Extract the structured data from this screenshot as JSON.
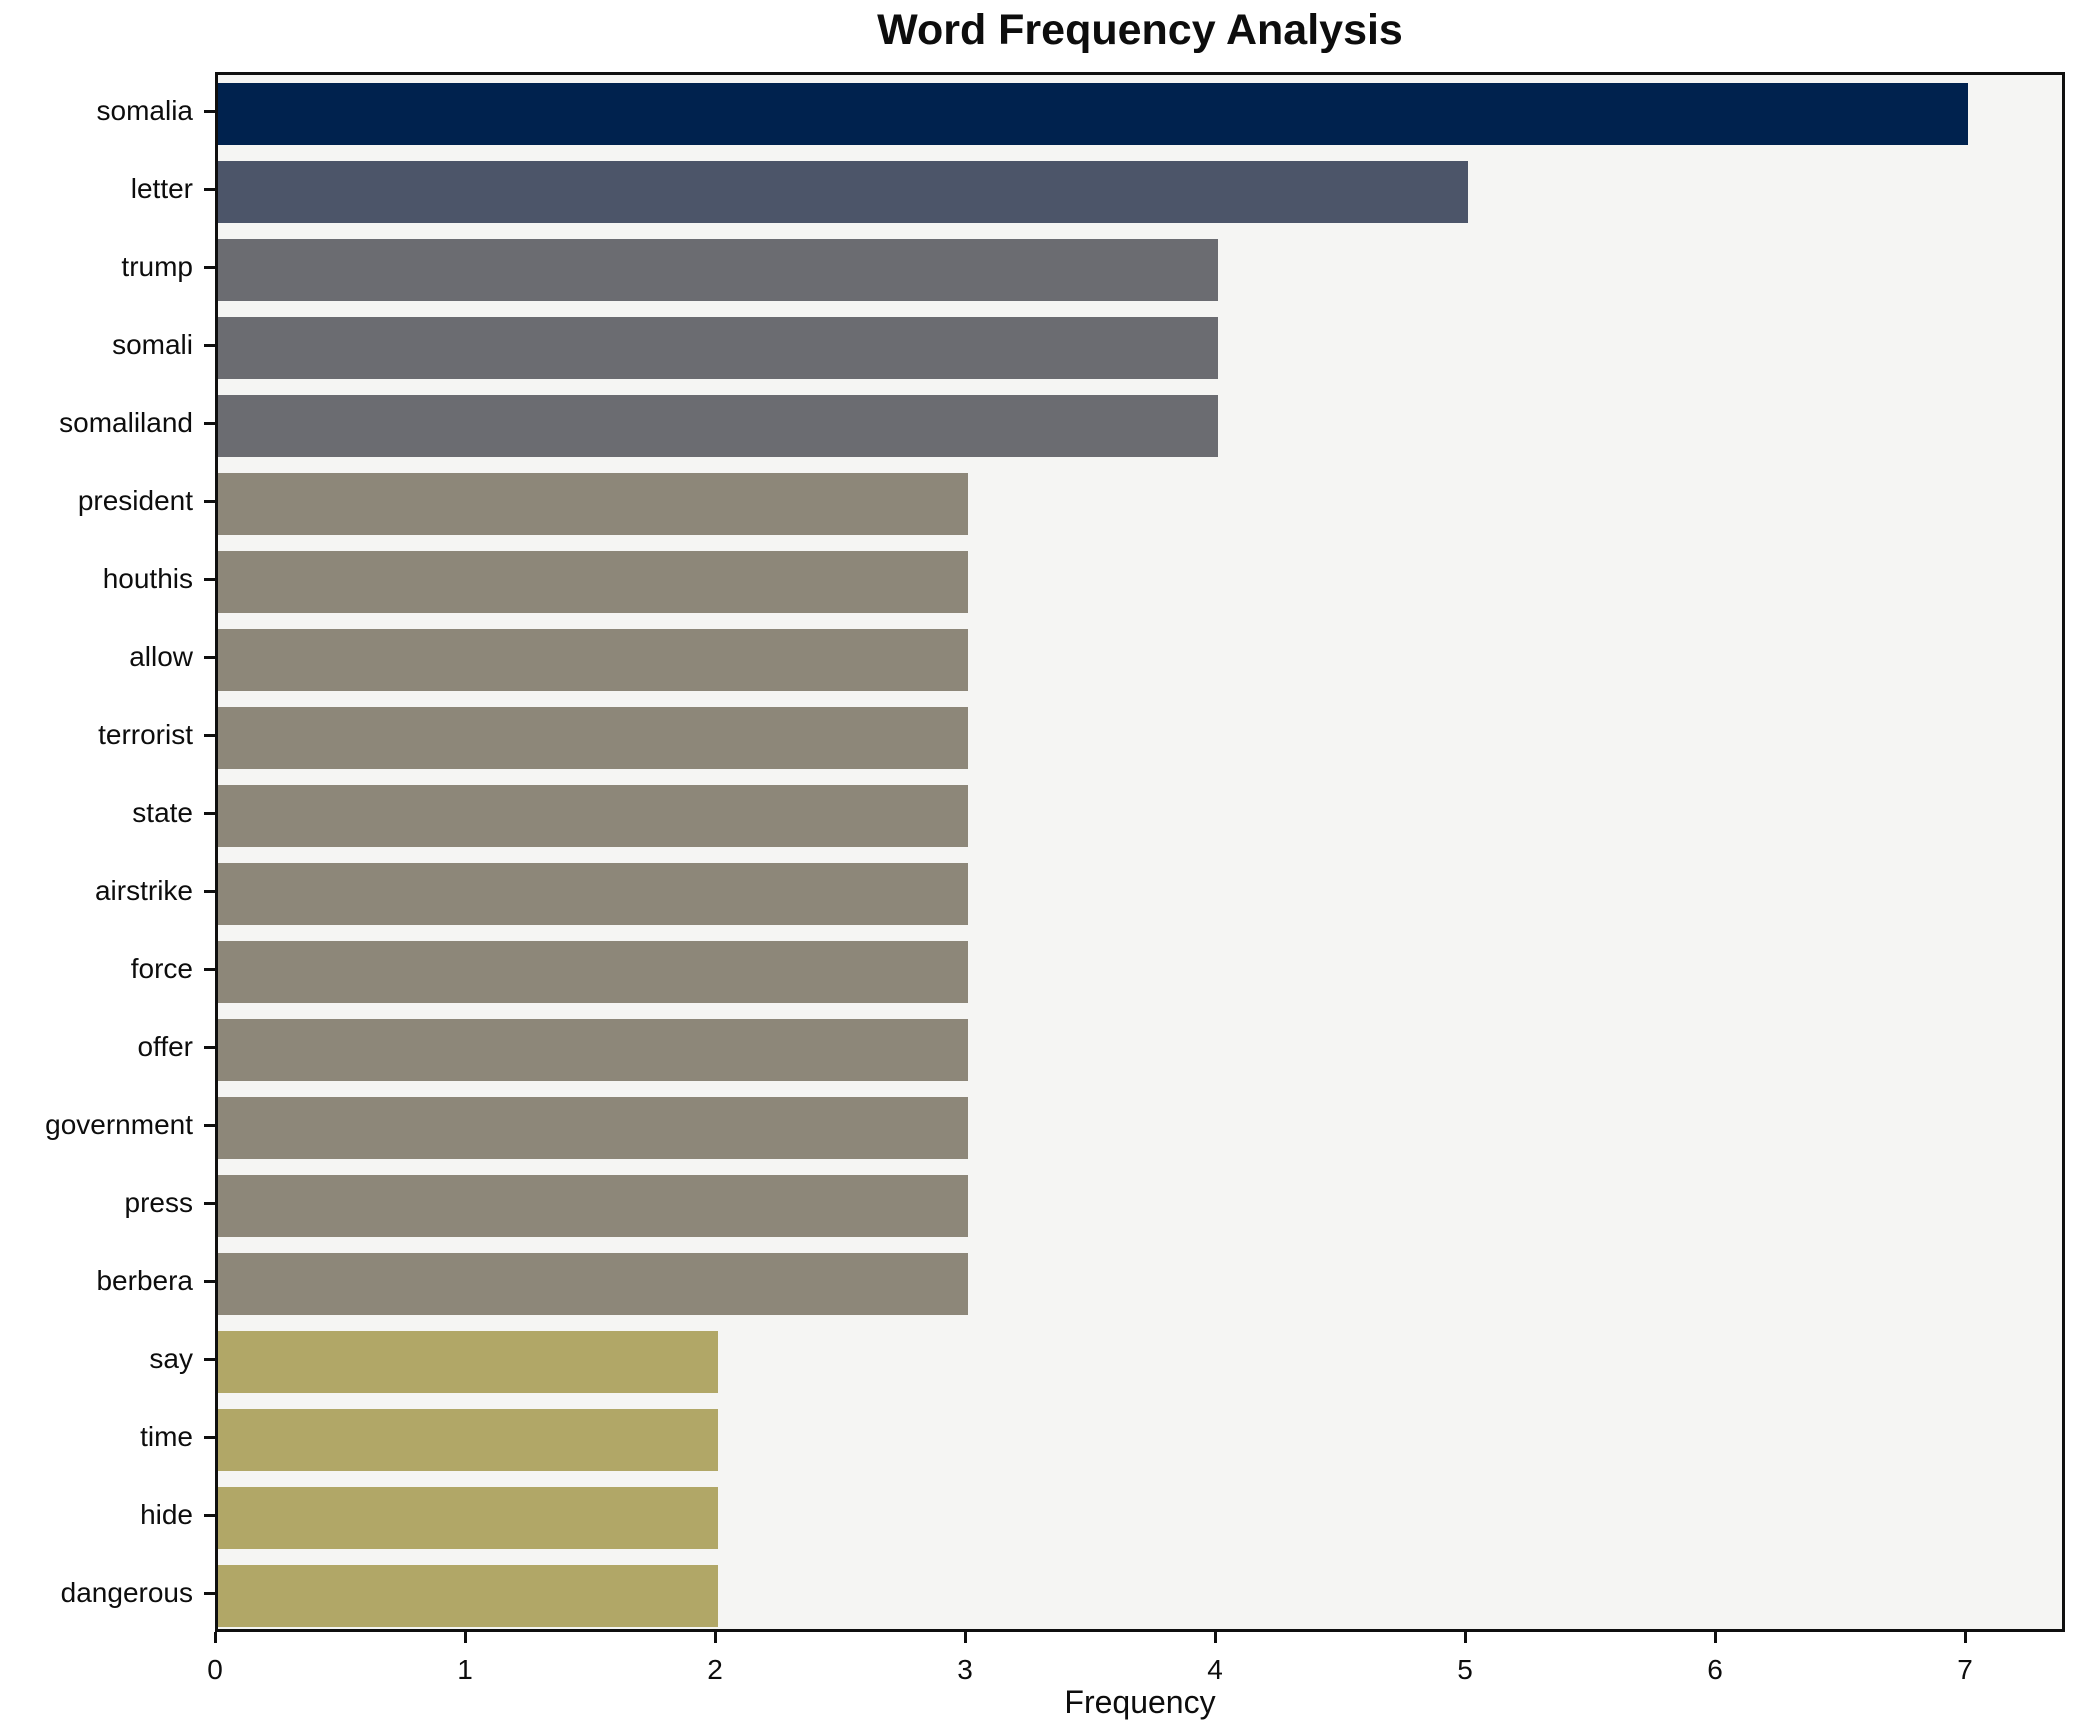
{
  "chart_data": {
    "type": "bar",
    "orientation": "horizontal",
    "title": "Word Frequency Analysis",
    "xlabel": "Frequency",
    "ylabel": "",
    "xlim": [
      0,
      7.4
    ],
    "xticks": [
      0,
      1,
      2,
      3,
      4,
      5,
      6,
      7
    ],
    "grid": false,
    "legend": null,
    "plot_background": "#f5f5f3",
    "axis_color": "#0f0f0f",
    "bars": [
      {
        "label": "somalia",
        "value": 7,
        "color": "#00224e"
      },
      {
        "label": "letter",
        "value": 5,
        "color": "#4c5569"
      },
      {
        "label": "trump",
        "value": 4,
        "color": "#6b6c71"
      },
      {
        "label": "somali",
        "value": 4,
        "color": "#6b6c71"
      },
      {
        "label": "somaliland",
        "value": 4,
        "color": "#6b6c71"
      },
      {
        "label": "president",
        "value": 3,
        "color": "#8d8779"
      },
      {
        "label": "houthis",
        "value": 3,
        "color": "#8d8779"
      },
      {
        "label": "allow",
        "value": 3,
        "color": "#8d8779"
      },
      {
        "label": "terrorist",
        "value": 3,
        "color": "#8d8779"
      },
      {
        "label": "state",
        "value": 3,
        "color": "#8d8779"
      },
      {
        "label": "airstrike",
        "value": 3,
        "color": "#8d8779"
      },
      {
        "label": "force",
        "value": 3,
        "color": "#8d8779"
      },
      {
        "label": "offer",
        "value": 3,
        "color": "#8d8779"
      },
      {
        "label": "government",
        "value": 3,
        "color": "#8d8779"
      },
      {
        "label": "press",
        "value": 3,
        "color": "#8d8779"
      },
      {
        "label": "berbera",
        "value": 3,
        "color": "#8d8779"
      },
      {
        "label": "say",
        "value": 2,
        "color": "#b1a767"
      },
      {
        "label": "time",
        "value": 2,
        "color": "#b1a767"
      },
      {
        "label": "hide",
        "value": 2,
        "color": "#b1a767"
      },
      {
        "label": "dangerous",
        "value": 2,
        "color": "#b1a767"
      }
    ]
  }
}
